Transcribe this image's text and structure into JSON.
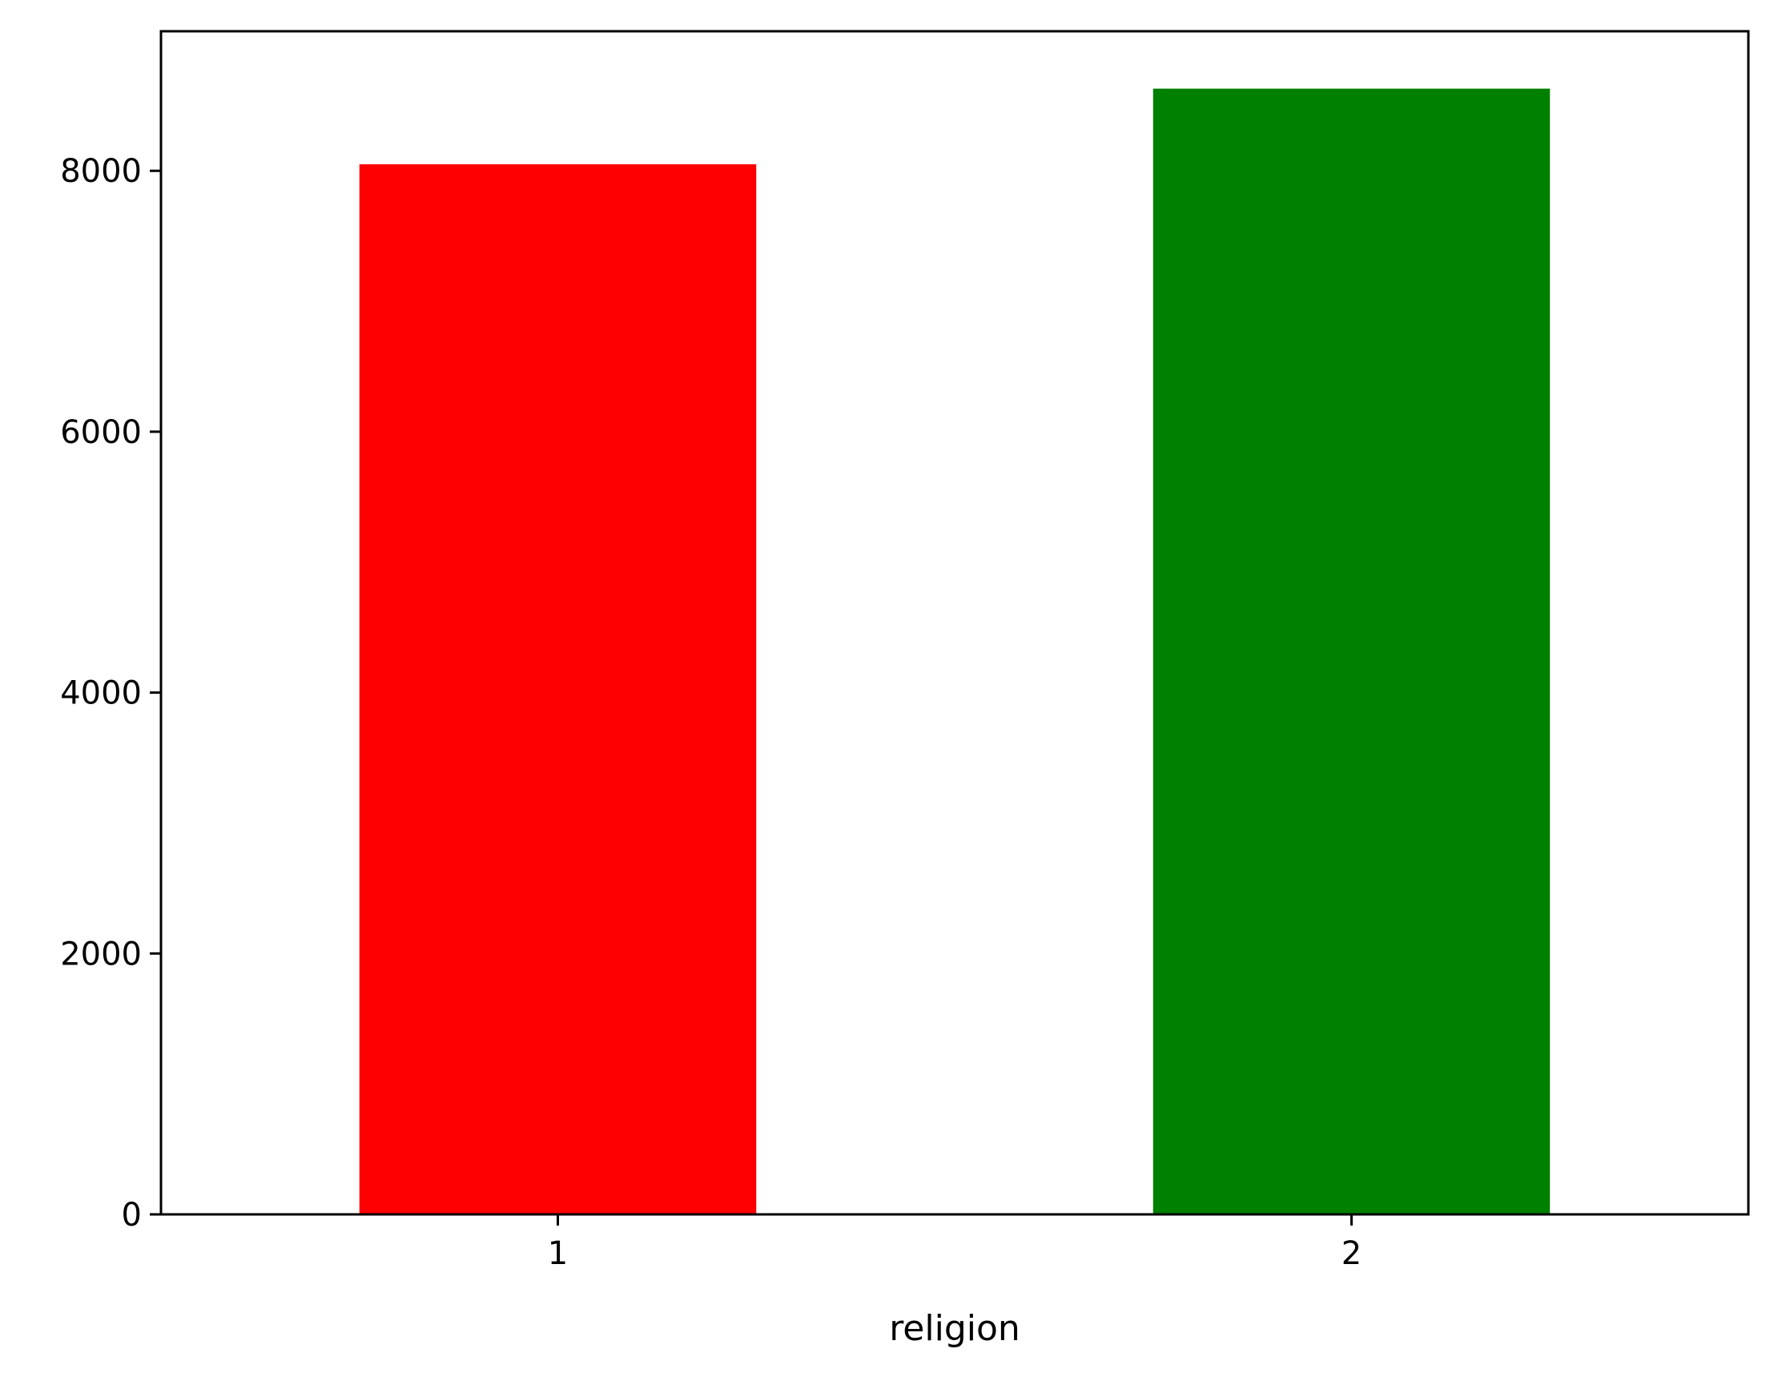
{
  "chart_data": {
    "type": "bar",
    "categories": [
      "1",
      "2"
    ],
    "values": [
      8050,
      8630
    ],
    "colors": [
      "#ff0000",
      "#008000"
    ],
    "title": "",
    "xlabel": "religion",
    "ylabel": "",
    "ylim": [
      0,
      9070
    ],
    "yticks": [
      0,
      2000,
      4000,
      6000,
      8000
    ],
    "grid": false,
    "legend": "none"
  }
}
